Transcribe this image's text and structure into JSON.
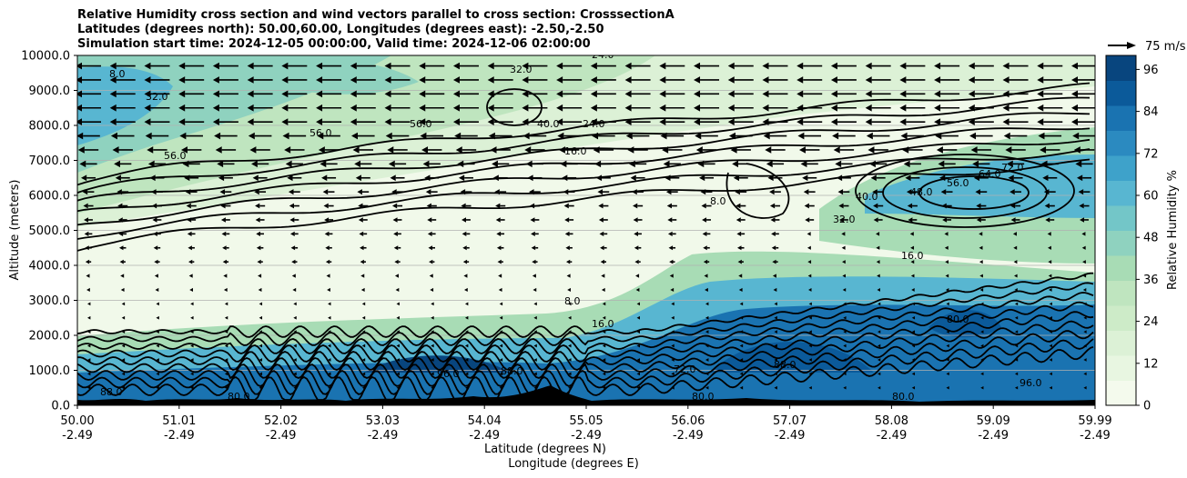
{
  "chart_data": {
    "type": "heatmap",
    "title": [
      "Relative Humidity cross section and wind vectors parallel to cross section: CrosssectionA",
      "Latitudes (degrees north): 50.00,60.00, Longitudes (degrees east): -2.50,-2.50",
      "Simulation start time: 2024-12-05 00:00:00, Valid time: 2024-12-06 02:00:00"
    ],
    "xlabel": "Latitude (degrees N)",
    "xlabel2": "Longitude (degrees E)",
    "ylabel": "Altitude (meters)",
    "ylim": [
      0,
      10000
    ],
    "xlim": [
      50.0,
      59.99
    ],
    "yticks": [
      "0.0",
      "1000.0",
      "2000.0",
      "3000.0",
      "4000.0",
      "5000.0",
      "6000.0",
      "7000.0",
      "8000.0",
      "9000.0",
      "10000.0"
    ],
    "xticks": [
      {
        "lat": "50.00",
        "lon": "-2.49"
      },
      {
        "lat": "51.01",
        "lon": "-2.49"
      },
      {
        "lat": "52.02",
        "lon": "-2.49"
      },
      {
        "lat": "53.03",
        "lon": "-2.49"
      },
      {
        "lat": "54.04",
        "lon": "-2.49"
      },
      {
        "lat": "55.05",
        "lon": "-2.49"
      },
      {
        "lat": "56.06",
        "lon": "-2.49"
      },
      {
        "lat": "57.07",
        "lon": "-2.49"
      },
      {
        "lat": "58.08",
        "lon": "-2.49"
      },
      {
        "lat": "59.09",
        "lon": "-2.49"
      },
      {
        "lat": "59.99",
        "lon": "-2.49"
      }
    ],
    "grid": "horizontal",
    "colorbar": {
      "label": "Relative Humidity %",
      "range": [
        0,
        100
      ],
      "ticks": [
        "0",
        "12",
        "24",
        "36",
        "48",
        "60",
        "72",
        "84",
        "96"
      ],
      "colors": [
        "#f4faed",
        "#e8f6e1",
        "#dcf1d6",
        "#cdebc8",
        "#bfe5bf",
        "#a8dcb5",
        "#8fd2bf",
        "#73c6c8",
        "#58b6d1",
        "#3ea2ca",
        "#2b8ac0",
        "#1a73b1",
        "#0b5a9a",
        "#08457e"
      ]
    },
    "quiver_key": "75 m/s",
    "contour_labels": [
      "8.0",
      "16.0",
      "24.0",
      "32.0",
      "40.0",
      "48.0",
      "56.0",
      "64.0",
      "72.0",
      "80.0",
      "88.0",
      "96.0"
    ],
    "wind_direction": "negative (toward lower latitude)"
  }
}
